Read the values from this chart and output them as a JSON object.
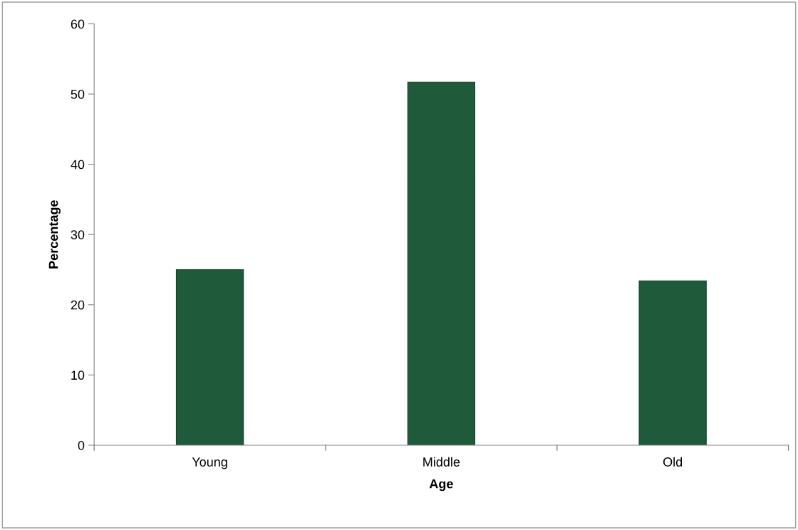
{
  "chart_data": {
    "type": "bar",
    "xlabel": "Age",
    "ylabel": "Percentage",
    "categories": [
      "Young",
      "Middle",
      "Old"
    ],
    "values": [
      25.0,
      51.7,
      23.4
    ],
    "color": "#1f5a3a",
    "ylim": [
      0,
      60
    ],
    "yticks": [
      0,
      10,
      20,
      30,
      40,
      50,
      60
    ],
    "grid": false
  }
}
